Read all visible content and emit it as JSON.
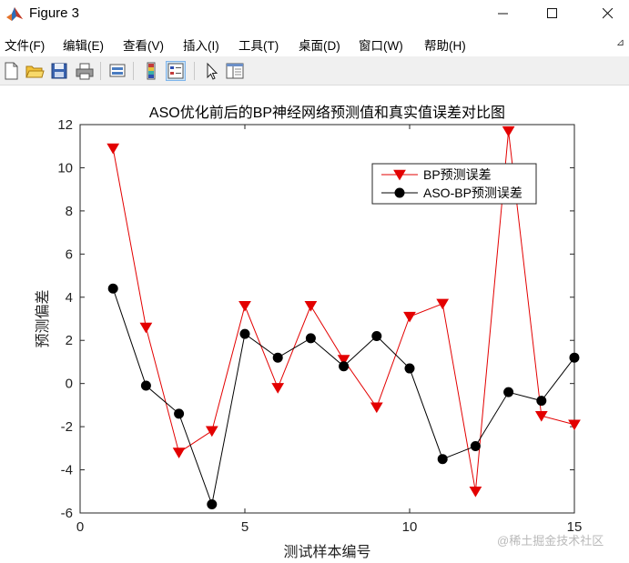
{
  "window": {
    "title": "Figure 3"
  },
  "menu": {
    "items": [
      "文件(F)",
      "编辑(E)",
      "查看(V)",
      "插入(I)",
      "工具(T)",
      "桌面(D)",
      "窗口(W)",
      "帮助(H)"
    ]
  },
  "toolbar": {
    "icons": [
      "new-figure-icon",
      "open-file-icon",
      "save-icon",
      "print-icon",
      "link-plot-icon",
      "colorbar-icon",
      "legend-icon",
      "pointer-icon",
      "property-editor-icon"
    ],
    "active": "legend-icon"
  },
  "colors": {
    "bp": "#e30000",
    "aso_bp": "#000000",
    "toolbar_bg": "#f0f0f0"
  },
  "chart_data": {
    "type": "line",
    "title": "ASO优化前后的BP神经网络预测值和真实值误差对比图",
    "xlabel": "测试样本编号",
    "ylabel": "预测偏差",
    "xlim": [
      0,
      15
    ],
    "ylim": [
      -6,
      12
    ],
    "xticks": [
      0,
      5,
      10,
      15
    ],
    "yticks": [
      -6,
      -4,
      -2,
      0,
      2,
      4,
      6,
      8,
      10,
      12
    ],
    "grid": false,
    "legend": "top-right",
    "x": [
      1,
      2,
      3,
      4,
      5,
      6,
      7,
      8,
      9,
      10,
      11,
      12,
      13,
      14,
      15
    ],
    "series": [
      {
        "name": "BP预测误差",
        "marker": "triangle-down",
        "color": "#e30000",
        "values": [
          10.9,
          2.6,
          -3.2,
          -2.2,
          3.6,
          -0.2,
          3.6,
          1.1,
          -1.1,
          3.1,
          3.7,
          -5.0,
          11.7,
          -1.5,
          -1.9
        ]
      },
      {
        "name": "ASO-BP预测误差",
        "marker": "circle",
        "color": "#000000",
        "values": [
          4.4,
          -0.1,
          -1.4,
          -5.6,
          2.3,
          1.2,
          2.1,
          0.8,
          2.2,
          0.7,
          -3.5,
          -2.9,
          -0.4,
          -0.8,
          1.2
        ]
      }
    ]
  },
  "watermark": "@稀土掘金技术社区"
}
